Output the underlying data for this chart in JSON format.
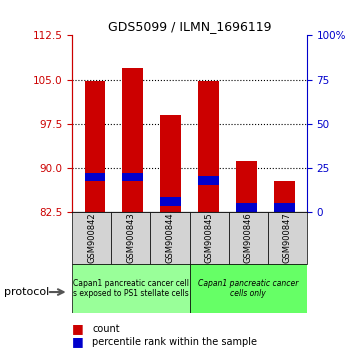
{
  "title": "GDS5099 / ILMN_1696119",
  "samples": [
    "GSM900842",
    "GSM900843",
    "GSM900844",
    "GSM900845",
    "GSM900846",
    "GSM900847"
  ],
  "count_values": [
    104.8,
    107.0,
    99.0,
    104.8,
    91.2,
    87.8
  ],
  "percentile_values": [
    20,
    20,
    6,
    18,
    3,
    3
  ],
  "ymin": 82.5,
  "ymax": 112.5,
  "yticks_left": [
    82.5,
    90.0,
    97.5,
    105.0,
    112.5
  ],
  "yticks_right": [
    0,
    25,
    50,
    75,
    100
  ],
  "grid_lines": [
    90.0,
    97.5,
    105.0
  ],
  "red_color": "#cc0000",
  "blue_color": "#0000cc",
  "bar_width": 0.55,
  "blue_bar_height": 1.5,
  "group1_color": "#99ff99",
  "group2_color": "#66ff66",
  "group1_label_line1": "Capan1 pancreatic cancer cell",
  "group1_label_line2": "s exposed to PS1 stellate cells",
  "group2_label_line1": "Capan1 pancreatic cancer",
  "group2_label_line2": "cells only",
  "protocol_label": "protocol",
  "legend_red_label": "count",
  "legend_blue_label": "percentile rank within the sample",
  "sample_box_color": "#d3d3d3"
}
